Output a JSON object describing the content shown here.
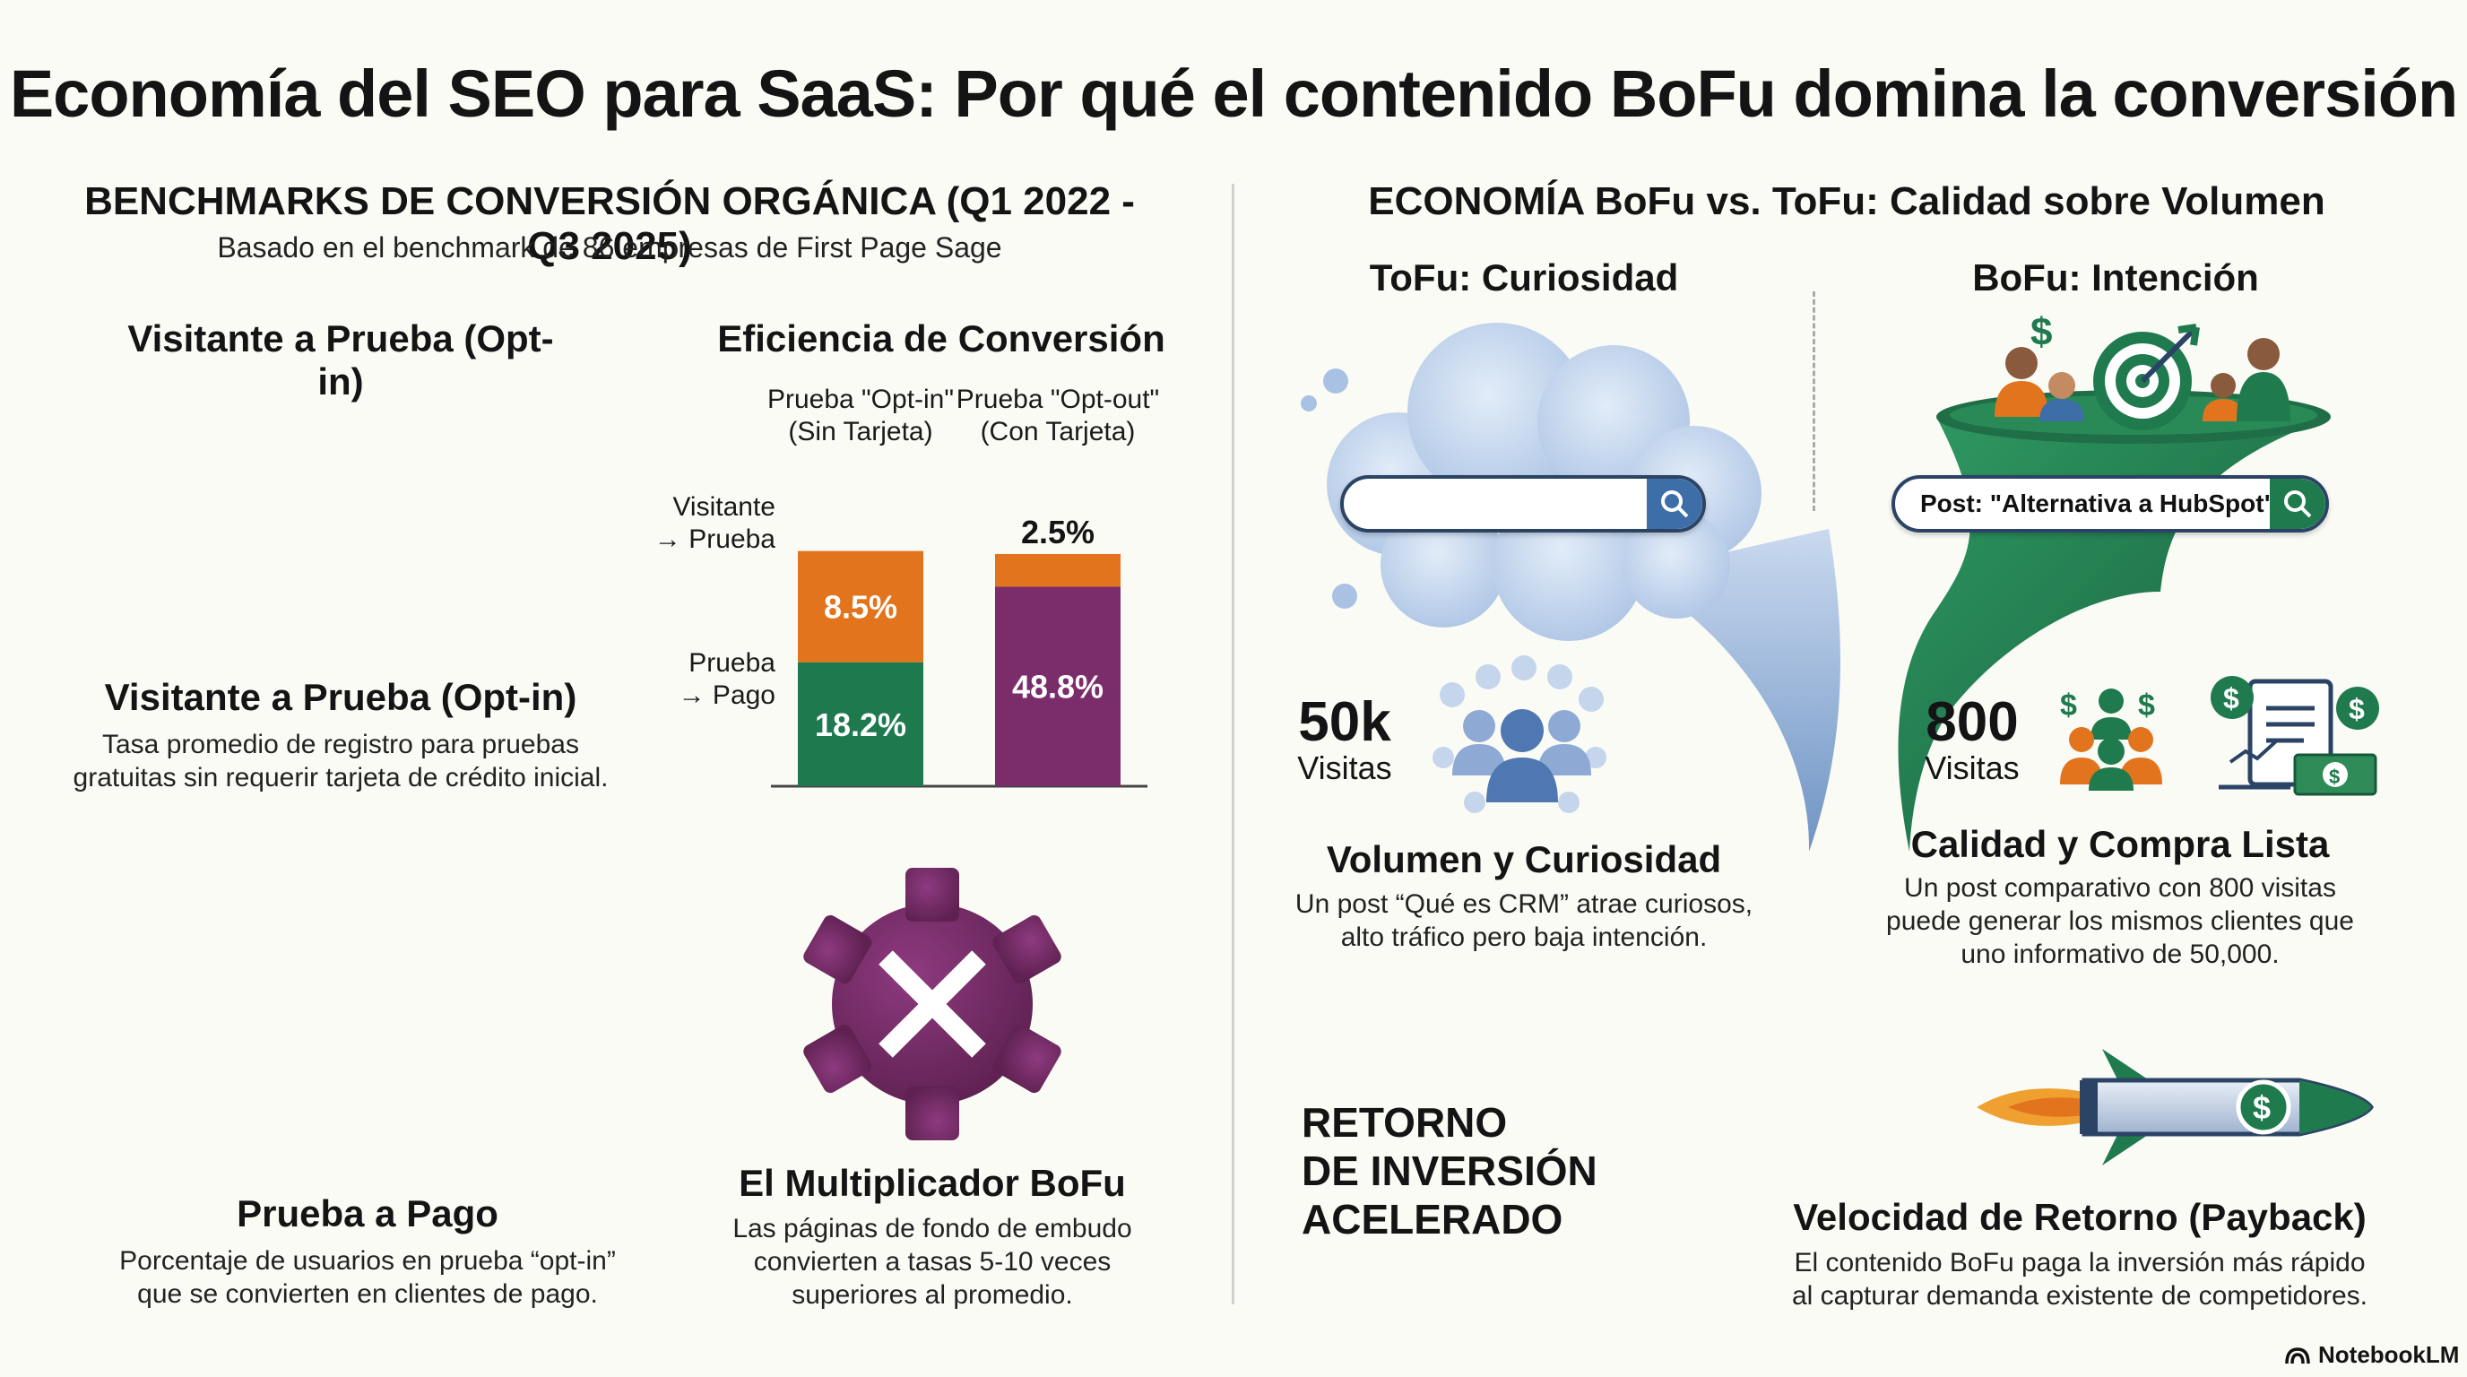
{
  "title": "Economía del SEO para SaaS: Por qué el contenido BoFu domina la conversión",
  "left": {
    "section_title": "BENCHMARKS DE CONVERSIÓN ORGÁNICA (Q1 2022 - Q3 2025)",
    "section_subtitle": "Basado en el benchmark de 86 empresas de First Page Sage",
    "visitor_trial_heading": "Visitante a Prueba (Opt-in)",
    "efficiency_heading": "Eficiencia de Conversión",
    "col_optin_line1": "Prueba \"Opt-in\"",
    "col_optin_line2": "(Sin Tarjeta)",
    "col_optout_line1": "Prueba \"Opt-out\"",
    "col_optout_line2": "(Con Tarjeta)",
    "row_visitor_line1": "Visitante",
    "row_visitor_line2": "→ Prueba",
    "row_pay_line1": "Prueba",
    "row_pay_line2": "→ Pago",
    "block1_title": "Visitante a Prueba (Opt-in)",
    "block1_text_line1": "Tasa promedio de registro para pruebas",
    "block1_text_line2": "gratuitas sin requerir tarjeta de crédito inicial.",
    "block2_title": "Prueba a Pago",
    "block2_text_line1": "Porcentaje de usuarios en prueba “opt-in”",
    "block2_text_line2": "que se convierten en clientes de pago.",
    "multiplier_title": "El Multiplicador BoFu",
    "multiplier_text_line1": "Las páginas de fondo de embudo",
    "multiplier_text_line2": "convierten a tasas 5-10 veces",
    "multiplier_text_line3": "superiores al promedio."
  },
  "chart_data": {
    "type": "bar",
    "title": "Eficiencia de Conversión",
    "categories": [
      "Prueba \"Opt-in\" (Sin Tarjeta)",
      "Prueba \"Opt-out\" (Con Tarjeta)"
    ],
    "series": [
      {
        "name": "Visitante → Prueba",
        "values": [
          8.5,
          2.5
        ],
        "labels": [
          "8.5%",
          "2.5%"
        ],
        "colors": [
          "#e3741e",
          "#e3741e"
        ]
      },
      {
        "name": "Prueba → Pago",
        "values": [
          18.2,
          48.8
        ],
        "labels": [
          "18.2%",
          "48.8%"
        ],
        "colors": [
          "#1e7a4e",
          "#7b2d6b"
        ]
      }
    ]
  },
  "right": {
    "section_title": "ECONOMÍA BoFu vs. ToFu: Calidad sobre Volumen",
    "tofu_heading": "ToFu: Curiosidad",
    "bofu_heading": "BoFu: Intención",
    "search_query": "Post: \"Alternativa a HubSpot\"",
    "tofu_number": "50k",
    "tofu_number_label": "Visitas",
    "bofu_number": "800",
    "bofu_number_label": "Visitas",
    "tofu_block_title": "Volumen y Curiosidad",
    "tofu_block_text_line1": "Un post “Qué es CRM” atrae curiosos,",
    "tofu_block_text_line2": "alto tráfico pero baja intención.",
    "bofu_block_title": "Calidad y Compra Lista",
    "bofu_block_text_line1": "Un post comparativo con 800 visitas",
    "bofu_block_text_line2": "puede generar los mismos clientes que",
    "bofu_block_text_line3": "uno informativo de 50,000.",
    "roi_line1": "RETORNO",
    "roi_line2": "DE INVERSIÓN",
    "roi_line3": "ACELERADO",
    "payback_title": "Velocidad de Retorno (Payback)",
    "payback_text_line1": "El contenido BoFu paga la inversión más rápido",
    "payback_text_line2": "al capturar demanda existente de competidores."
  },
  "footer": {
    "brand": "NotebookLM"
  },
  "colors": {
    "orange": "#e3741e",
    "green": "#1e7a4e",
    "purple": "#7b2d6b",
    "blue": "#3e6ea8",
    "navy": "#1f3355"
  },
  "icons": [
    "search-icon",
    "target-icon",
    "rocket-icon",
    "gear-x-icon",
    "people-icon",
    "dollar-icon",
    "invoice-icon"
  ]
}
